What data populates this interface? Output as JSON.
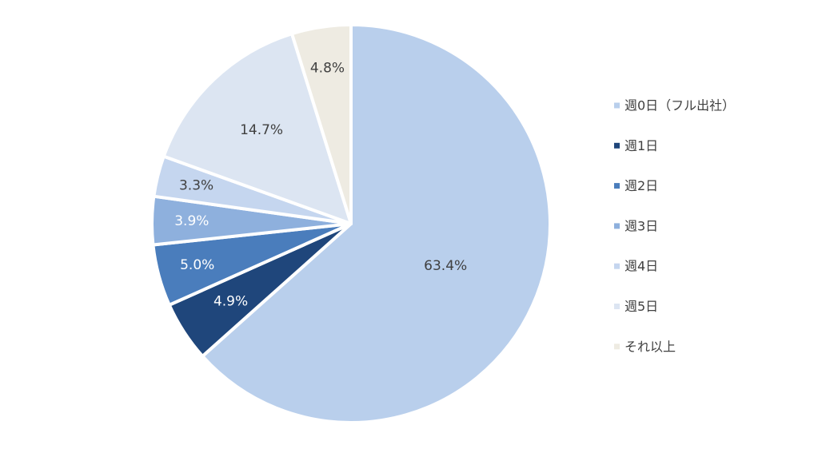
{
  "chart_data": {
    "type": "pie",
    "title": "",
    "categories": [
      "週0日（フル出社）",
      "週1日",
      "週2日",
      "週3日",
      "週4日",
      "週5日",
      "それ以上"
    ],
    "values": [
      63.4,
      4.9,
      5.0,
      3.9,
      3.3,
      14.7,
      4.8
    ],
    "value_labels": [
      "63.4%",
      "4.9%",
      "5.0%",
      "3.9%",
      "3.3%",
      "14.7%",
      "4.8%"
    ],
    "colors": [
      "#b9cfec",
      "#1f467b",
      "#4a7dbc",
      "#8eb0dd",
      "#c5d6ef",
      "#dce5f2",
      "#eeebe2"
    ],
    "label_colors": [
      "#404040",
      "#ffffff",
      "#ffffff",
      "#ffffff",
      "#404040",
      "#404040",
      "#404040"
    ],
    "start": "12 o'clock",
    "direction": "clockwise",
    "legend_position": "right"
  }
}
